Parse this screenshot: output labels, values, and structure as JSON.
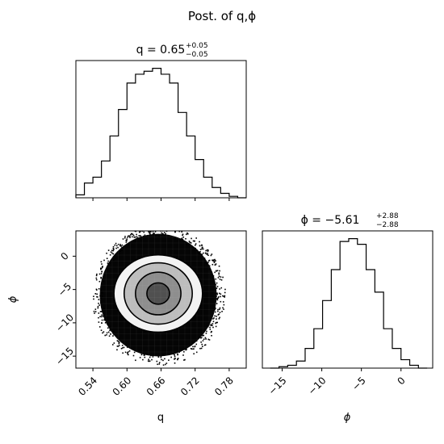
{
  "suptitle": "Post. of q,ϕ",
  "panels": {
    "q_hist": {
      "title_main": "q = 0.65",
      "title_sup": "+0.05",
      "title_sub": "−0.05"
    },
    "phi_hist": {
      "title_main": "ϕ = −5.61",
      "title_sup": "+2.88",
      "title_sub": "−2.88"
    },
    "joint": {
      "xlabel": "q",
      "ylabel": "ϕ"
    },
    "phi_axis": {
      "xlabel": "ϕ"
    }
  },
  "chart_data": [
    {
      "type": "histogram",
      "name": "q marginal",
      "xlim": [
        0.51,
        0.81
      ],
      "bin_edges": [
        0.51,
        0.525,
        0.54,
        0.555,
        0.57,
        0.585,
        0.6,
        0.615,
        0.63,
        0.645,
        0.66,
        0.675,
        0.69,
        0.705,
        0.72,
        0.735,
        0.75,
        0.765,
        0.78,
        0.795,
        0.81
      ],
      "counts": [
        2,
        10,
        14,
        25,
        42,
        60,
        78,
        84,
        86,
        88,
        84,
        78,
        58,
        42,
        26,
        14,
        7,
        3,
        1,
        0
      ],
      "yaxis_ticks": false
    },
    {
      "type": "contour-scatter",
      "name": "joint q-phi",
      "xlim": [
        0.51,
        0.81
      ],
      "ylim": [
        -16.8,
        3.8
      ],
      "xticks": [
        "0.54",
        "0.60",
        "0.66",
        "0.72",
        "0.78"
      ],
      "xtick_values": [
        0.54,
        0.6,
        0.66,
        0.72,
        0.78
      ],
      "yticks": [
        "−15",
        "−10",
        "−5",
        "0"
      ],
      "ytick_values": [
        -15,
        -10,
        -5,
        0
      ],
      "center": [
        0.655,
        -5.6
      ],
      "contour_levels": [
        {
          "rx": 0.078,
          "ry": 5.8
        },
        {
          "rx": 0.06,
          "ry": 4.6
        },
        {
          "rx": 0.04,
          "ry": 3.2
        },
        {
          "rx": 0.02,
          "ry": 1.6
        }
      ]
    },
    {
      "type": "histogram",
      "name": "phi marginal",
      "xlim": [
        -17.5,
        4.0
      ],
      "bin_edges": [
        -16.5,
        -15.4,
        -14.3,
        -13.2,
        -12.1,
        -11.0,
        -9.9,
        -8.8,
        -7.7,
        -6.6,
        -5.5,
        -4.4,
        -3.3,
        -2.2,
        -1.1,
        0.0,
        1.1,
        2.2,
        3.3
      ],
      "counts": [
        0,
        1,
        2,
        5,
        14,
        28,
        48,
        70,
        90,
        92,
        88,
        70,
        54,
        28,
        14,
        6,
        2,
        0
      ],
      "xticks": [
        "−15",
        "−10",
        "−5",
        "0"
      ],
      "xtick_values": [
        -15,
        -10,
        -5,
        0
      ],
      "yaxis_ticks": false
    }
  ]
}
